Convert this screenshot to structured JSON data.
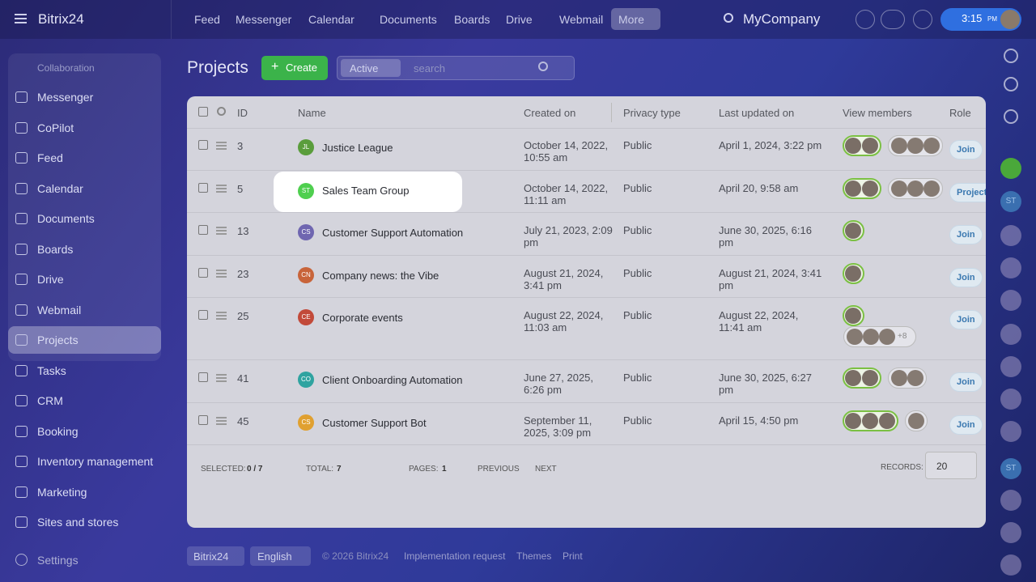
{
  "header": {
    "logo": "Bitrix24",
    "nav": [
      "Feed",
      "Messenger",
      "Calendar",
      "Documents",
      "Boards",
      "Drive",
      "Webmail",
      "More"
    ],
    "company": "MyCompany",
    "time": "3:15",
    "ampm": "PM"
  },
  "sidebar": {
    "section": "Collaboration",
    "items": [
      "Messenger",
      "CoPilot",
      "Feed",
      "Calendar",
      "Documents",
      "Boards",
      "Drive",
      "Webmail",
      "Projects",
      "Tasks",
      "CRM",
      "Booking",
      "Inventory management",
      "Marketing",
      "Sites and stores"
    ],
    "settings": "Settings"
  },
  "toolbar": {
    "title": "Projects",
    "create": "Create",
    "filter": "Active",
    "search": "search"
  },
  "table": {
    "columns": [
      "ID",
      "Name",
      "Created on",
      "Privacy type",
      "Last updated on",
      "View members",
      "Role"
    ],
    "rows": [
      {
        "id": 3,
        "initials": "JL",
        "name": "Justice League",
        "created": "October 14, 2022, 10:55 am",
        "privacy": "Public",
        "updated": "April 1, 2024, 3:22 pm",
        "role": "Join"
      },
      {
        "id": 5,
        "initials": "ST",
        "name": "Sales Team Group",
        "created": "October 14, 2022, 11:11 am",
        "privacy": "Public",
        "updated": "April 20, 9:58 am",
        "role": "Project"
      },
      {
        "id": 13,
        "initials": "CS",
        "name": "Customer Support Automation",
        "created": "July 21, 2023, 2:09 pm",
        "privacy": "Public",
        "updated": "June 30, 2025, 6:16 pm",
        "role": "Join"
      },
      {
        "id": 23,
        "initials": "CN",
        "name": "Company news: the Vibe",
        "created": "August 21, 2024, 3:41 pm",
        "privacy": "Public",
        "updated": "August 21, 2024, 3:41 pm",
        "role": "Join"
      },
      {
        "id": 25,
        "initials": "CE",
        "name": "Corporate events",
        "created": "August 22, 2024, 11:03 am",
        "privacy": "Public",
        "updated": "August 22, 2024, 11:41 am",
        "role": "Join",
        "more_members": "+8"
      },
      {
        "id": 41,
        "initials": "CO",
        "name": "Client Onboarding Automation",
        "created": "June 27, 2025, 6:26 pm",
        "privacy": "Public",
        "updated": "June 30, 2025, 6:27 pm",
        "role": "Join"
      },
      {
        "id": 45,
        "initials": "CS",
        "name": "Customer Support Bot",
        "created": "September 11, 2025, 3:09 pm",
        "privacy": "Public",
        "updated": "April 15, 4:50 pm",
        "role": "Join"
      }
    ]
  },
  "pager": {
    "selected_label": "SELECTED:",
    "selected": "0 / 7",
    "total_label": "TOTAL:",
    "total": 7,
    "pages_label": "PAGES:",
    "pages": 1,
    "previous": "PREVIOUS",
    "next": "NEXT",
    "records_label": "RECORDS:",
    "records": 20
  },
  "footer": {
    "logo": "Bitrix24",
    "language": "English",
    "copyright": "© 2026 Bitrix24",
    "links": [
      "Implementation request",
      "Themes",
      "Print"
    ]
  },
  "rail": {
    "badges": [
      "ST",
      "ST"
    ]
  }
}
